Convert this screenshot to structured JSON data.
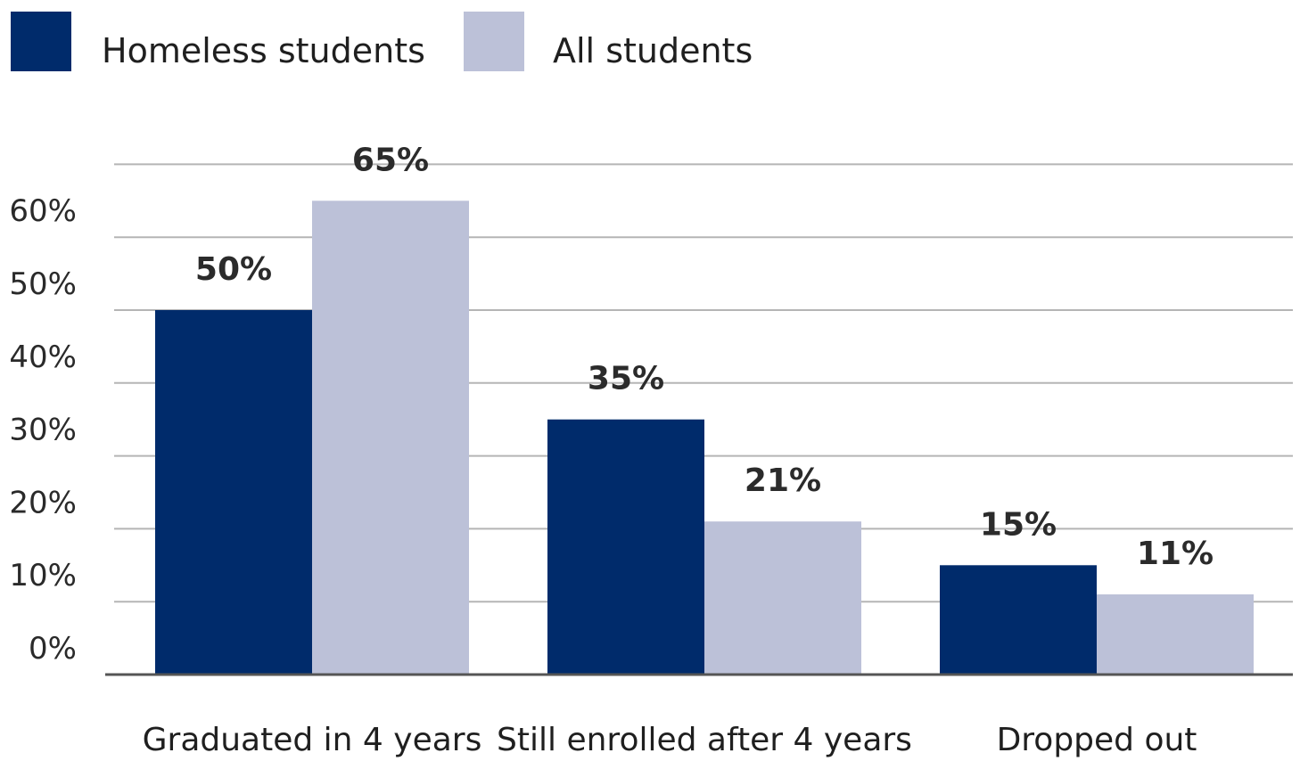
{
  "chart_data": {
    "type": "bar",
    "categories": [
      "Graduated in 4 years",
      "Still enrolled after 4 years",
      "Dropped out"
    ],
    "series": [
      {
        "name": "Homeless students",
        "values": [
          50,
          35,
          15
        ],
        "labels": [
          "50%",
          "35%",
          "15%"
        ],
        "color": "#002b6b"
      },
      {
        "name": "All students",
        "values": [
          65,
          21,
          11
        ],
        "labels": [
          "65%",
          "21%",
          "11%"
        ],
        "color": "#bcc1d8"
      }
    ],
    "yticks": [
      "0%",
      "10%",
      "20%",
      "30%",
      "40%",
      "50%",
      "60%"
    ],
    "ylim": [
      0,
      70
    ],
    "grid": true,
    "legend_position": "top-left",
    "title": "",
    "xlabel": "",
    "ylabel": ""
  }
}
